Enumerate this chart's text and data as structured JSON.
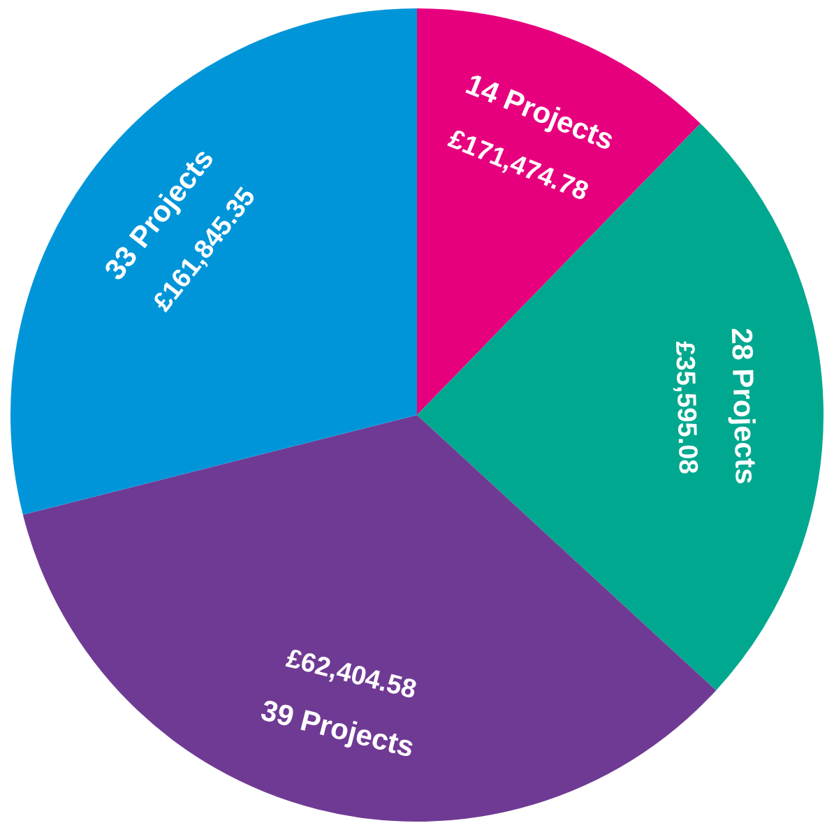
{
  "chart_data": {
    "type": "pie",
    "categories": [
      "14 Projects",
      "28 Projects",
      "39 Projects",
      "33 Projects"
    ],
    "values": [
      14,
      28,
      39,
      33
    ],
    "annotations": [
      "£171,474.78",
      "£35,595.08",
      "£62,404.58",
      "£161,845.35"
    ],
    "colors": [
      "#e6007e",
      "#00a88f",
      "#6f3a94",
      "#0095d9"
    ],
    "legend": false
  }
}
